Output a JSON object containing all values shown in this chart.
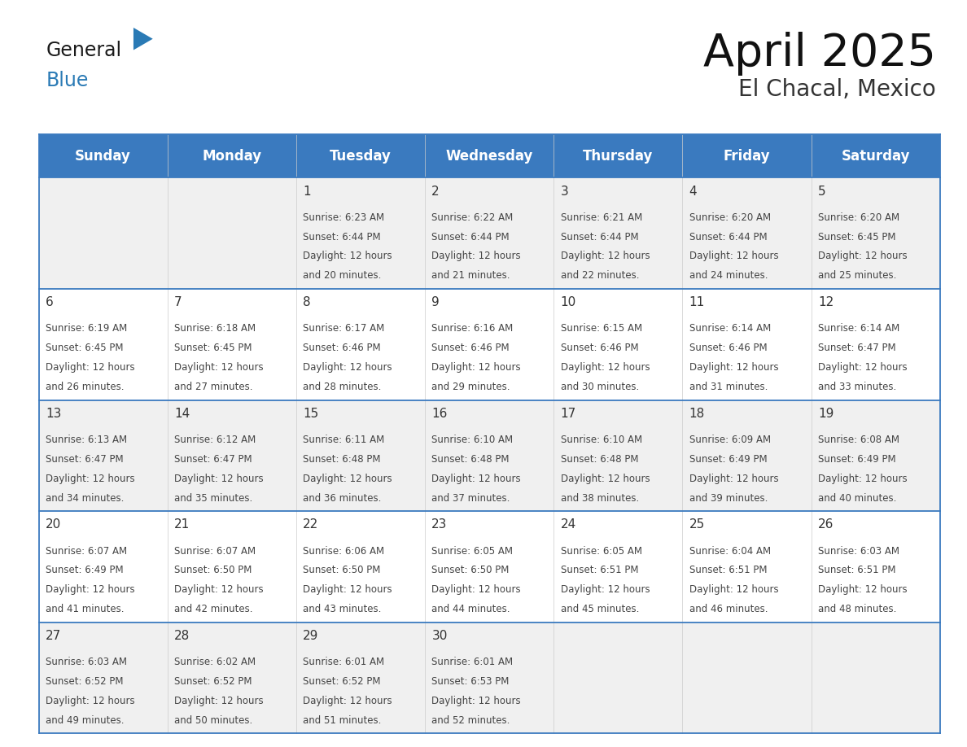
{
  "title": "April 2025",
  "subtitle": "El Chacal, Mexico",
  "header_bg": "#3a7abf",
  "header_text": "#ffffff",
  "row_bg_even": "#f0f0f0",
  "row_bg_odd": "#ffffff",
  "border_color": "#3a7abf",
  "text_color": "#333333",
  "days_of_week": [
    "Sunday",
    "Monday",
    "Tuesday",
    "Wednesday",
    "Thursday",
    "Friday",
    "Saturday"
  ],
  "calendar_data": [
    [
      {
        "day": "",
        "sunrise": "",
        "sunset": "",
        "daylight": ""
      },
      {
        "day": "",
        "sunrise": "",
        "sunset": "",
        "daylight": ""
      },
      {
        "day": "1",
        "sunrise": "Sunrise: 6:23 AM",
        "sunset": "Sunset: 6:44 PM",
        "daylight": "Daylight: 12 hours\nand 20 minutes."
      },
      {
        "day": "2",
        "sunrise": "Sunrise: 6:22 AM",
        "sunset": "Sunset: 6:44 PM",
        "daylight": "Daylight: 12 hours\nand 21 minutes."
      },
      {
        "day": "3",
        "sunrise": "Sunrise: 6:21 AM",
        "sunset": "Sunset: 6:44 PM",
        "daylight": "Daylight: 12 hours\nand 22 minutes."
      },
      {
        "day": "4",
        "sunrise": "Sunrise: 6:20 AM",
        "sunset": "Sunset: 6:44 PM",
        "daylight": "Daylight: 12 hours\nand 24 minutes."
      },
      {
        "day": "5",
        "sunrise": "Sunrise: 6:20 AM",
        "sunset": "Sunset: 6:45 PM",
        "daylight": "Daylight: 12 hours\nand 25 minutes."
      }
    ],
    [
      {
        "day": "6",
        "sunrise": "Sunrise: 6:19 AM",
        "sunset": "Sunset: 6:45 PM",
        "daylight": "Daylight: 12 hours\nand 26 minutes."
      },
      {
        "day": "7",
        "sunrise": "Sunrise: 6:18 AM",
        "sunset": "Sunset: 6:45 PM",
        "daylight": "Daylight: 12 hours\nand 27 minutes."
      },
      {
        "day": "8",
        "sunrise": "Sunrise: 6:17 AM",
        "sunset": "Sunset: 6:46 PM",
        "daylight": "Daylight: 12 hours\nand 28 minutes."
      },
      {
        "day": "9",
        "sunrise": "Sunrise: 6:16 AM",
        "sunset": "Sunset: 6:46 PM",
        "daylight": "Daylight: 12 hours\nand 29 minutes."
      },
      {
        "day": "10",
        "sunrise": "Sunrise: 6:15 AM",
        "sunset": "Sunset: 6:46 PM",
        "daylight": "Daylight: 12 hours\nand 30 minutes."
      },
      {
        "day": "11",
        "sunrise": "Sunrise: 6:14 AM",
        "sunset": "Sunset: 6:46 PM",
        "daylight": "Daylight: 12 hours\nand 31 minutes."
      },
      {
        "day": "12",
        "sunrise": "Sunrise: 6:14 AM",
        "sunset": "Sunset: 6:47 PM",
        "daylight": "Daylight: 12 hours\nand 33 minutes."
      }
    ],
    [
      {
        "day": "13",
        "sunrise": "Sunrise: 6:13 AM",
        "sunset": "Sunset: 6:47 PM",
        "daylight": "Daylight: 12 hours\nand 34 minutes."
      },
      {
        "day": "14",
        "sunrise": "Sunrise: 6:12 AM",
        "sunset": "Sunset: 6:47 PM",
        "daylight": "Daylight: 12 hours\nand 35 minutes."
      },
      {
        "day": "15",
        "sunrise": "Sunrise: 6:11 AM",
        "sunset": "Sunset: 6:48 PM",
        "daylight": "Daylight: 12 hours\nand 36 minutes."
      },
      {
        "day": "16",
        "sunrise": "Sunrise: 6:10 AM",
        "sunset": "Sunset: 6:48 PM",
        "daylight": "Daylight: 12 hours\nand 37 minutes."
      },
      {
        "day": "17",
        "sunrise": "Sunrise: 6:10 AM",
        "sunset": "Sunset: 6:48 PM",
        "daylight": "Daylight: 12 hours\nand 38 minutes."
      },
      {
        "day": "18",
        "sunrise": "Sunrise: 6:09 AM",
        "sunset": "Sunset: 6:49 PM",
        "daylight": "Daylight: 12 hours\nand 39 minutes."
      },
      {
        "day": "19",
        "sunrise": "Sunrise: 6:08 AM",
        "sunset": "Sunset: 6:49 PM",
        "daylight": "Daylight: 12 hours\nand 40 minutes."
      }
    ],
    [
      {
        "day": "20",
        "sunrise": "Sunrise: 6:07 AM",
        "sunset": "Sunset: 6:49 PM",
        "daylight": "Daylight: 12 hours\nand 41 minutes."
      },
      {
        "day": "21",
        "sunrise": "Sunrise: 6:07 AM",
        "sunset": "Sunset: 6:50 PM",
        "daylight": "Daylight: 12 hours\nand 42 minutes."
      },
      {
        "day": "22",
        "sunrise": "Sunrise: 6:06 AM",
        "sunset": "Sunset: 6:50 PM",
        "daylight": "Daylight: 12 hours\nand 43 minutes."
      },
      {
        "day": "23",
        "sunrise": "Sunrise: 6:05 AM",
        "sunset": "Sunset: 6:50 PM",
        "daylight": "Daylight: 12 hours\nand 44 minutes."
      },
      {
        "day": "24",
        "sunrise": "Sunrise: 6:05 AM",
        "sunset": "Sunset: 6:51 PM",
        "daylight": "Daylight: 12 hours\nand 45 minutes."
      },
      {
        "day": "25",
        "sunrise": "Sunrise: 6:04 AM",
        "sunset": "Sunset: 6:51 PM",
        "daylight": "Daylight: 12 hours\nand 46 minutes."
      },
      {
        "day": "26",
        "sunrise": "Sunrise: 6:03 AM",
        "sunset": "Sunset: 6:51 PM",
        "daylight": "Daylight: 12 hours\nand 48 minutes."
      }
    ],
    [
      {
        "day": "27",
        "sunrise": "Sunrise: 6:03 AM",
        "sunset": "Sunset: 6:52 PM",
        "daylight": "Daylight: 12 hours\nand 49 minutes."
      },
      {
        "day": "28",
        "sunrise": "Sunrise: 6:02 AM",
        "sunset": "Sunset: 6:52 PM",
        "daylight": "Daylight: 12 hours\nand 50 minutes."
      },
      {
        "day": "29",
        "sunrise": "Sunrise: 6:01 AM",
        "sunset": "Sunset: 6:52 PM",
        "daylight": "Daylight: 12 hours\nand 51 minutes."
      },
      {
        "day": "30",
        "sunrise": "Sunrise: 6:01 AM",
        "sunset": "Sunset: 6:53 PM",
        "daylight": "Daylight: 12 hours\nand 52 minutes."
      },
      {
        "day": "",
        "sunrise": "",
        "sunset": "",
        "daylight": ""
      },
      {
        "day": "",
        "sunrise": "",
        "sunset": "",
        "daylight": ""
      },
      {
        "day": "",
        "sunrise": "",
        "sunset": "",
        "daylight": ""
      }
    ]
  ],
  "logo_general_color": "#1a1a1a",
  "logo_blue_color": "#2a7ab5",
  "logo_triangle_color": "#2a7ab5",
  "title_fontsize": 40,
  "subtitle_fontsize": 20,
  "header_fontsize": 12,
  "day_num_fontsize": 11,
  "cell_text_fontsize": 8.5
}
